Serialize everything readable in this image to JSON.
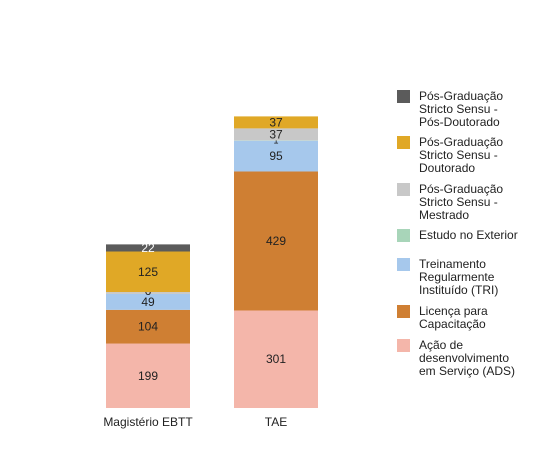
{
  "chart_data": {
    "type": "bar",
    "stacked": true,
    "categories": [
      "Magistério EBTT",
      "TAE"
    ],
    "series": [
      {
        "name": "Ação de desenvolvimento em Serviço (ADS)",
        "values": [
          199,
          301
        ],
        "color": "#f4b6aa"
      },
      {
        "name": "Licença para Capacitação",
        "values": [
          104,
          429
        ],
        "color": "#cf7f33"
      },
      {
        "name": "Treinamento Regularmente Instituído (TRI)",
        "values": [
          49,
          95
        ],
        "color": "#a6c8ec"
      },
      {
        "name": "Estudo no Exterior",
        "values": [
          0,
          1
        ],
        "color": "#a8d5b9"
      },
      {
        "name": "Pós-Graduação Stricto Sensu - Mestrado",
        "values": [
          6,
          37
        ],
        "color": "#c8c8c8"
      },
      {
        "name": "Pós-Graduação Stricto Sensu - Doutorado",
        "values": [
          125,
          37
        ],
        "color": "#e0a826"
      },
      {
        "name": "Pós-Graduação Stricto Sensu - Pós-Doutorado",
        "values": [
          22,
          0
        ],
        "color": "#5b5b5b"
      }
    ],
    "data_labels": [
      [
        "199",
        "301"
      ],
      [
        "104",
        "429"
      ],
      [
        "49",
        "95"
      ],
      [
        "",
        "1"
      ],
      [
        "6",
        "37"
      ],
      [
        "125",
        "37"
      ],
      [
        "22",
        ""
      ]
    ],
    "legend": {
      "placement": "right",
      "entries": [
        {
          "lines": [
            "Pós-Graduação",
            "Stricto Sensu -",
            "Pós-Doutorado"
          ],
          "color": "#5b5b5b"
        },
        {
          "lines": [
            "Pós-Graduação",
            "Stricto Sensu -",
            "Doutorado"
          ],
          "color": "#e0a826"
        },
        {
          "lines": [
            "Pós-Graduação",
            "Stricto Sensu -",
            "Mestrado"
          ],
          "color": "#c8c8c8"
        },
        {
          "lines": [
            "Estudo no Exterior"
          ],
          "color": "#a8d5b9"
        },
        {
          "lines": [
            "Treinamento",
            "Regularmente",
            "Instituído (TRI)"
          ],
          "color": "#a6c8ec"
        },
        {
          "lines": [
            "Licença para",
            "Capacitação"
          ],
          "color": "#cf7f33"
        },
        {
          "lines": [
            "Ação de",
            "desenvolvimento",
            "em Serviço (ADS)"
          ],
          "color": "#f4b6aa"
        }
      ]
    },
    "grid": false,
    "ylim": [
      0,
      930
    ]
  }
}
